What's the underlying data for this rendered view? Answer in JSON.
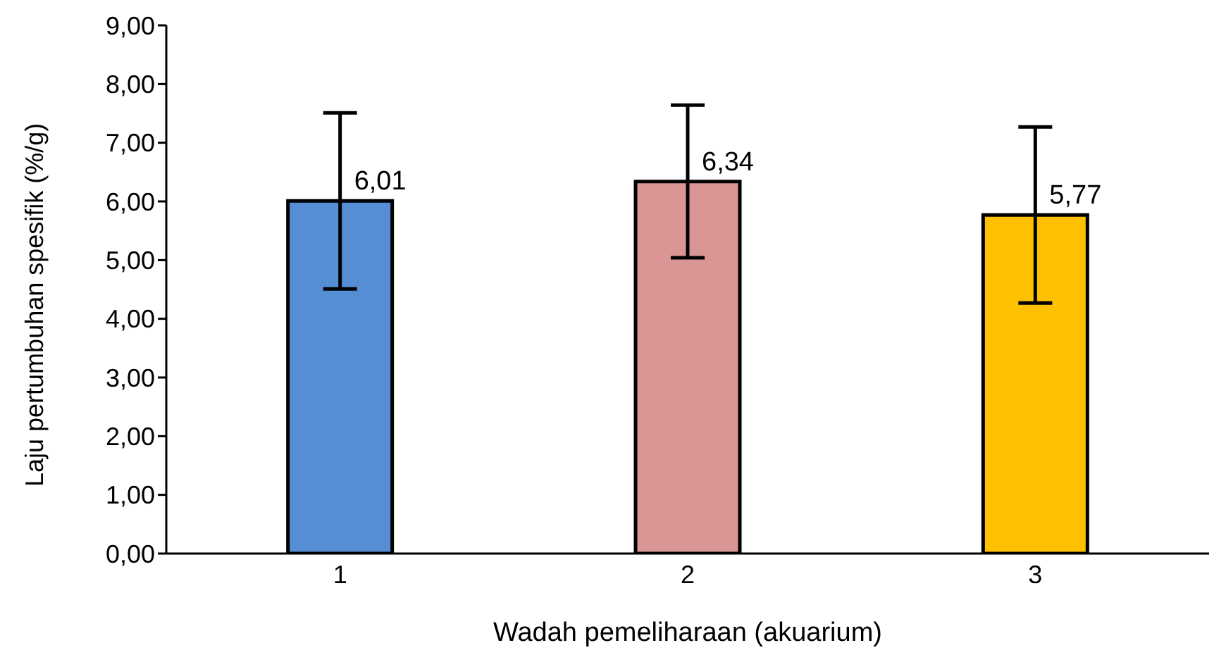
{
  "chart_data": {
    "type": "bar",
    "xlabel": "Wadah pemeliharaan (akuarium)",
    "ylabel": "Laju pertumbuhan spesifik (%/g)",
    "categories": [
      "1",
      "2",
      "3"
    ],
    "values": [
      6.01,
      6.34,
      5.77
    ],
    "colors": [
      "#558ed5",
      "#d99694",
      "#ffc000"
    ],
    "errors": [
      1.5,
      1.3,
      1.5
    ],
    "value_labels": [
      "6,01",
      "6,34",
      "5,77"
    ],
    "ylim": [
      0,
      9
    ],
    "yticks": [
      {
        "value": 0,
        "label": "0,00"
      },
      {
        "value": 1,
        "label": "1,00"
      },
      {
        "value": 2,
        "label": "2,00"
      },
      {
        "value": 3,
        "label": "3,00"
      },
      {
        "value": 4,
        "label": "4,00"
      },
      {
        "value": 5,
        "label": "5,00"
      },
      {
        "value": 6,
        "label": "6,00"
      },
      {
        "value": 7,
        "label": "7,00"
      },
      {
        "value": 8,
        "label": "8,00"
      },
      {
        "value": 9,
        "label": "9,00"
      }
    ],
    "grid": false,
    "legend": false
  }
}
